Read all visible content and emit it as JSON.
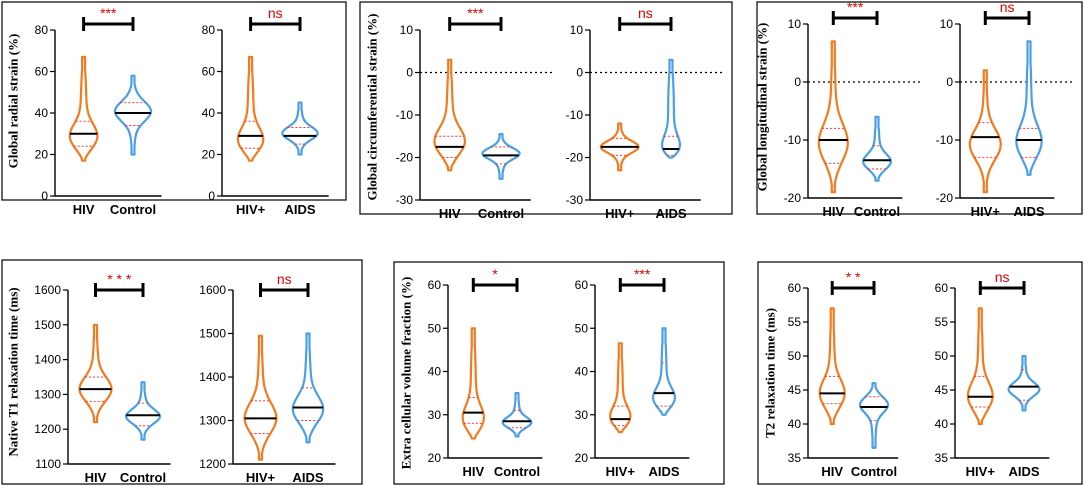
{
  "colors": {
    "group1": "#f47a1f",
    "group2": "#4a9fe5",
    "quartile": "#ff3333",
    "significance": "#e00000",
    "frame": "#000000"
  },
  "chart_data": [
    {
      "id": "radial",
      "type": "violin",
      "ylabel": "Global radial strain (%)",
      "ylim": [
        0,
        80
      ],
      "yticks": [
        0,
        20,
        40,
        60,
        80
      ],
      "subplots": [
        {
          "categories": [
            "HIV",
            "Control"
          ],
          "significance": "***",
          "series": [
            {
              "name": "HIV",
              "min": 17,
              "max": 67,
              "median": 30,
              "q1": 24,
              "q3": 36,
              "peak": 27
            },
            {
              "name": "Control",
              "min": 20,
              "max": 58,
              "median": 40,
              "q1": 34,
              "q3": 45,
              "peak": 41
            }
          ]
        },
        {
          "categories": [
            "HIV+",
            "AIDS"
          ],
          "significance": "ns",
          "series": [
            {
              "name": "HIV+",
              "min": 17,
              "max": 67,
              "median": 29,
              "q1": 23,
              "q3": 36,
              "peak": 25
            },
            {
              "name": "AIDS",
              "min": 20,
              "max": 45,
              "median": 29,
              "q1": 25,
              "q3": 33,
              "peak": 30
            }
          ]
        }
      ]
    },
    {
      "id": "circumferential",
      "type": "violin",
      "ylabel": "Global circumferential strain (%)",
      "ylim": [
        -30,
        10
      ],
      "yticks": [
        -30,
        -20,
        -10,
        0,
        10
      ],
      "reference_line": 0,
      "subplots": [
        {
          "categories": [
            "HIV",
            "Control"
          ],
          "significance": "***",
          "series": [
            {
              "name": "HIV",
              "min": -23,
              "max": 3,
              "median": -17.5,
              "q1": -20,
              "q3": -15,
              "peak": -17
            },
            {
              "name": "Control",
              "min": -25,
              "max": -14.5,
              "median": -19.5,
              "q1": -21.5,
              "q3": -17.5,
              "peak": -19
            }
          ]
        },
        {
          "categories": [
            "HIV+",
            "AIDS"
          ],
          "significance": "ns",
          "series": [
            {
              "name": "HIV+",
              "min": -23,
              "max": -12,
              "median": -17.5,
              "q1": -19.5,
              "q3": -15.5,
              "peak": -17.5
            },
            {
              "name": "AIDS",
              "min": -20,
              "max": 3,
              "median": -18,
              "q1": -19.5,
              "q3": -15,
              "peak": -19
            }
          ]
        }
      ]
    },
    {
      "id": "longitudinal",
      "type": "violin",
      "ylabel": "Global longitudinal strain (%)",
      "ylim": [
        -20,
        10
      ],
      "yticks": [
        -20,
        -10,
        0,
        10
      ],
      "reference_line": 0,
      "subplots": [
        {
          "categories": [
            "HIV",
            "Control"
          ],
          "significance": "***",
          "series": [
            {
              "name": "HIV",
              "min": -19,
              "max": 7,
              "median": -10,
              "q1": -14,
              "q3": -8,
              "peak": -11
            },
            {
              "name": "Control",
              "min": -17,
              "max": -6,
              "median": -13.5,
              "q1": -15,
              "q3": -11,
              "peak": -14
            }
          ]
        },
        {
          "categories": [
            "HIV+",
            "AIDS"
          ],
          "significance": "ns",
          "series": [
            {
              "name": "HIV+",
              "min": -19,
              "max": 2,
              "median": -9.5,
              "q1": -13,
              "q3": -7,
              "peak": -11
            },
            {
              "name": "AIDS",
              "min": -16,
              "max": 7,
              "median": -10,
              "q1": -13,
              "q3": -8,
              "peak": -11
            }
          ]
        }
      ]
    },
    {
      "id": "t1",
      "type": "violin",
      "ylabel": "Native  T1 relaxation time (ms)",
      "ylim": [
        1100,
        1600
      ],
      "yticks": [
        1100,
        1200,
        1300,
        1400,
        1500,
        1600
      ],
      "subplots": [
        {
          "categories": [
            "HIV",
            "Control"
          ],
          "significance": "* * *",
          "series": [
            {
              "name": "HIV",
              "min": 1220,
              "max": 1500,
              "median": 1315,
              "q1": 1280,
              "q3": 1350,
              "peak": 1310
            },
            {
              "name": "Control",
              "min": 1170,
              "max": 1335,
              "median": 1240,
              "q1": 1210,
              "q3": 1275,
              "peak": 1235
            }
          ],
          "ylim": [
            1100,
            1600
          ],
          "yticks": [
            1100,
            1200,
            1300,
            1400,
            1500,
            1600
          ]
        },
        {
          "categories": [
            "HIV+",
            "AIDS"
          ],
          "significance": "ns",
          "series": [
            {
              "name": "HIV+",
              "min": 1210,
              "max": 1495,
              "median": 1305,
              "q1": 1270,
              "q3": 1345,
              "peak": 1300
            },
            {
              "name": "AIDS",
              "min": 1250,
              "max": 1500,
              "median": 1330,
              "q1": 1300,
              "q3": 1375,
              "peak": 1320
            }
          ],
          "ylim": [
            1200,
            1600
          ],
          "yticks": [
            1200,
            1300,
            1400,
            1500,
            1600
          ]
        }
      ]
    },
    {
      "id": "ecv",
      "type": "violin",
      "ylabel": "Extra cellular volume fraction (%)",
      "ylim": [
        20,
        60
      ],
      "yticks": [
        20,
        30,
        40,
        50,
        60
      ],
      "subplots": [
        {
          "categories": [
            "HIV",
            "Control"
          ],
          "significance": "*",
          "series": [
            {
              "name": "HIV",
              "min": 24.5,
              "max": 50,
              "median": 30.5,
              "q1": 28,
              "q3": 34,
              "peak": 28
            },
            {
              "name": "Control",
              "min": 25,
              "max": 35,
              "median": 28.5,
              "q1": 27,
              "q3": 31,
              "peak": 28
            }
          ]
        },
        {
          "categories": [
            "HIV+",
            "AIDS"
          ],
          "significance": "***",
          "series": [
            {
              "name": "HIV+",
              "min": 26,
              "max": 46.5,
              "median": 29,
              "q1": 27.5,
              "q3": 32,
              "peak": 28.5
            },
            {
              "name": "AIDS",
              "min": 30,
              "max": 50,
              "median": 35,
              "q1": 32,
              "q3": 42,
              "peak": 33
            }
          ]
        }
      ]
    },
    {
      "id": "t2",
      "type": "violin",
      "ylabel": "T2 relaxation time (ms)",
      "ylim": [
        35,
        60
      ],
      "yticks": [
        35,
        40,
        45,
        50,
        55,
        60
      ],
      "subplots": [
        {
          "categories": [
            "HIV",
            "Control"
          ],
          "significance": "*  *",
          "series": [
            {
              "name": "HIV",
              "min": 40,
              "max": 57,
              "median": 44.5,
              "q1": 43,
              "q3": 47,
              "peak": 44
            },
            {
              "name": "Control",
              "min": 36.5,
              "max": 46,
              "median": 42.5,
              "q1": 40.5,
              "q3": 44,
              "peak": 43
            }
          ]
        },
        {
          "categories": [
            "HIV+",
            "AIDS"
          ],
          "significance": "ns",
          "series": [
            {
              "name": "HIV+",
              "min": 40,
              "max": 57,
              "median": 44,
              "q1": 42.5,
              "q3": 47,
              "peak": 43.5
            },
            {
              "name": "AIDS",
              "min": 42,
              "max": 50,
              "median": 45.5,
              "q1": 43.5,
              "q3": 48,
              "peak": 45
            }
          ]
        }
      ]
    }
  ]
}
